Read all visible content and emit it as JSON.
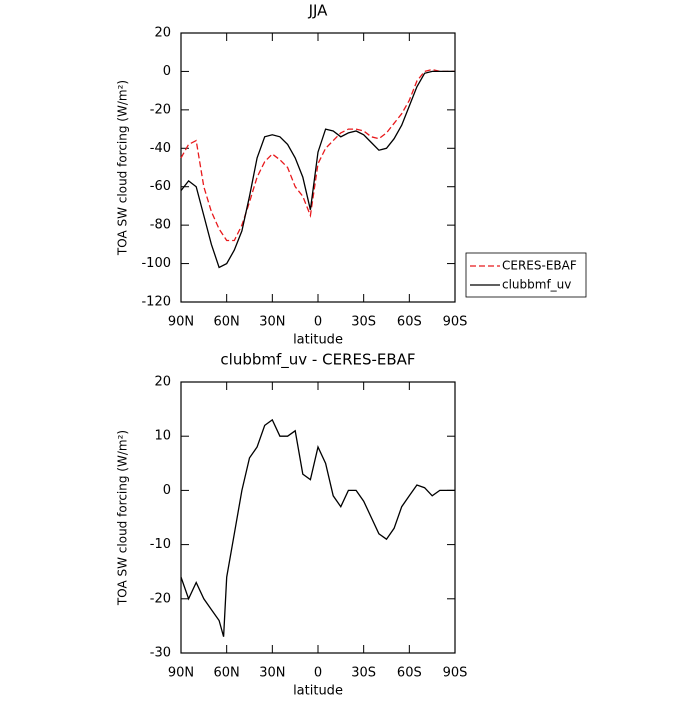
{
  "chart_data": [
    {
      "type": "line",
      "title": "JJA",
      "xlabel": "latitude",
      "ylabel": "TOA SW cloud forcing (W/m²)",
      "x": [
        90,
        85,
        80,
        75,
        70,
        65,
        60,
        55,
        50,
        45,
        40,
        35,
        30,
        25,
        20,
        15,
        10,
        5,
        0,
        -5,
        -10,
        -15,
        -20,
        -25,
        -30,
        -35,
        -40,
        -45,
        -50,
        -55,
        -60,
        -65,
        -70,
        -75,
        -80,
        -85,
        -90
      ],
      "series": [
        {
          "name": "CERES-EBAF",
          "color": "#e8191c",
          "style": "dashed",
          "values": [
            -45,
            -38,
            -36,
            -60,
            -73,
            -82,
            -88,
            -88,
            -80,
            -68,
            -55,
            -47,
            -43,
            -46,
            -50,
            -60,
            -65,
            -75,
            -48,
            -40,
            -36,
            -32,
            -30,
            -30,
            -31,
            -34,
            -35,
            -32,
            -27,
            -22,
            -15,
            -5,
            0,
            1,
            0,
            0,
            0
          ]
        },
        {
          "name": "clubbmf_uv",
          "color": "#000000",
          "style": "solid",
          "values": [
            -62,
            -57,
            -60,
            -75,
            -90,
            -102,
            -100,
            -93,
            -83,
            -65,
            -45,
            -34,
            -33,
            -34,
            -38,
            -45,
            -55,
            -72,
            -42,
            -30,
            -31,
            -34,
            -32,
            -31,
            -33,
            -37,
            -41,
            -40,
            -35,
            -28,
            -18,
            -8,
            -1,
            0,
            0,
            0,
            0
          ]
        }
      ],
      "xlim": [
        90,
        -90
      ],
      "xticks": [
        {
          "value": 90,
          "label": "90N"
        },
        {
          "value": 60,
          "label": "60N"
        },
        {
          "value": 30,
          "label": "30N"
        },
        0,
        {
          "value": -30,
          "label": "30S"
        },
        {
          "value": -60,
          "label": "60S"
        },
        {
          "value": -90,
          "label": "90S"
        }
      ],
      "ylim": [
        -120,
        20
      ],
      "yticks": [
        -120,
        -100,
        -80,
        -60,
        -40,
        -20,
        0,
        20
      ],
      "legend": "right"
    },
    {
      "type": "line",
      "title": "clubbmf_uv - CERES-EBAF",
      "xlabel": "latitude",
      "ylabel": "TOA SW cloud forcing (W/m²)",
      "x": [
        90,
        85,
        80,
        75,
        70,
        65,
        62,
        60,
        55,
        50,
        45,
        40,
        35,
        30,
        25,
        20,
        15,
        10,
        5,
        0,
        -5,
        -10,
        -15,
        -20,
        -25,
        -30,
        -35,
        -40,
        -45,
        -50,
        -55,
        -60,
        -65,
        -70,
        -75,
        -80,
        -85,
        -90
      ],
      "values": [
        -16,
        -20,
        -17,
        -20,
        -22,
        -24,
        -27,
        -16,
        -8,
        0,
        6,
        8,
        12,
        13,
        10,
        10,
        11,
        3,
        2,
        8,
        5,
        -1,
        -3,
        0,
        0,
        -2,
        -5,
        -8,
        -9,
        -7,
        -3,
        -1,
        1,
        0.5,
        -1,
        0,
        0,
        0
      ],
      "color": "#000000",
      "xlim": [
        90,
        -90
      ],
      "xticks": [
        {
          "value": 90,
          "label": "90N"
        },
        {
          "value": 60,
          "label": "60N"
        },
        {
          "value": 30,
          "label": "30N"
        },
        0,
        {
          "value": -30,
          "label": "30S"
        },
        {
          "value": -60,
          "label": "60S"
        },
        {
          "value": -90,
          "label": "90S"
        }
      ],
      "ylim": [
        -30,
        20
      ],
      "yticks": [
        -30,
        -20,
        -10,
        0,
        10,
        20
      ]
    }
  ]
}
